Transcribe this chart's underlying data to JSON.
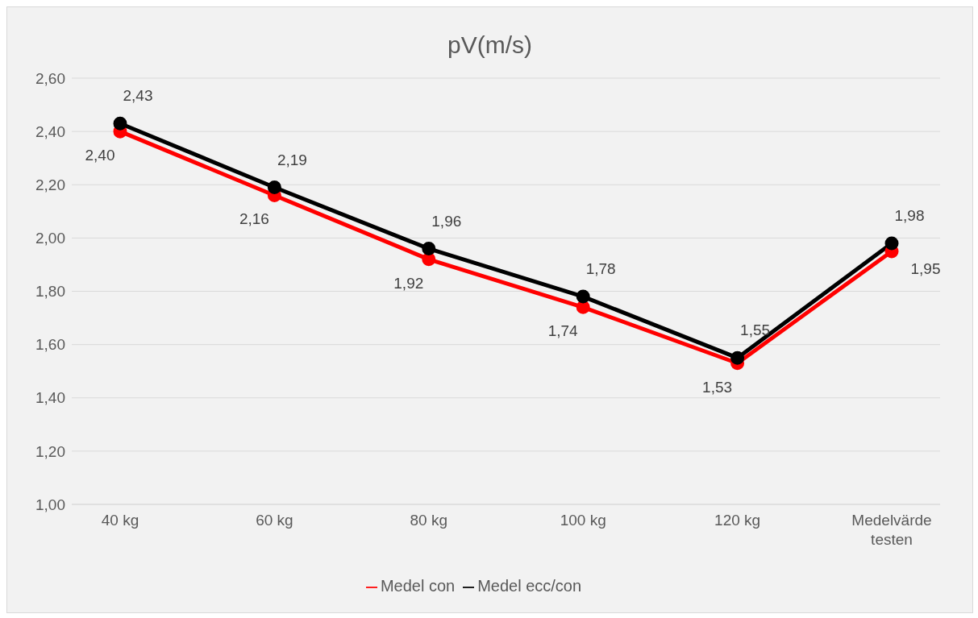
{
  "chart_data": {
    "type": "line",
    "title": "pV(m/s)",
    "categories": [
      "40 kg",
      "60 kg",
      "80 kg",
      "100 kg",
      "120 kg",
      "Medelvärde testen"
    ],
    "series": [
      {
        "name": "Medel con",
        "color": "#ff0000",
        "values": [
          2.4,
          2.16,
          1.92,
          1.74,
          1.53,
          1.95
        ],
        "value_labels": [
          "2,40",
          "2,16",
          "1,92",
          "1,74",
          "1,53",
          "1,95"
        ]
      },
      {
        "name": "Medel ecc/con",
        "color": "#000000",
        "values": [
          2.43,
          2.19,
          1.96,
          1.78,
          1.55,
          1.98
        ],
        "value_labels": [
          "2,43",
          "2,19",
          "1,96",
          "1,78",
          "1,55",
          "1,98"
        ]
      }
    ],
    "ylim": [
      1.0,
      2.6
    ],
    "yticks": [
      {
        "value": 1.0,
        "label": "1,00"
      },
      {
        "value": 1.2,
        "label": "1,20"
      },
      {
        "value": 1.4,
        "label": "1,40"
      },
      {
        "value": 1.6,
        "label": "1,60"
      },
      {
        "value": 1.8,
        "label": "1,80"
      },
      {
        "value": 2.0,
        "label": "2,00"
      },
      {
        "value": 2.2,
        "label": "2,20"
      },
      {
        "value": 2.4,
        "label": "2,40"
      },
      {
        "value": 2.6,
        "label": "2,60"
      }
    ],
    "grid": "y",
    "legend": "bottom",
    "marker": "circle",
    "line_style": "solid"
  }
}
